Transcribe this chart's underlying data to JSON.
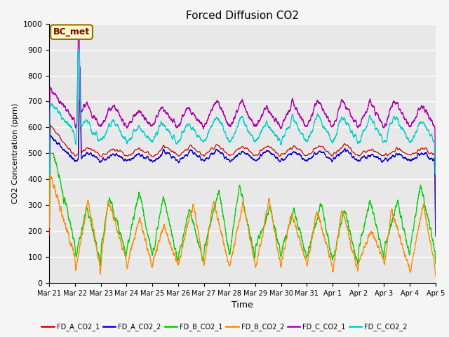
{
  "title": "Forced Diffusion CO2",
  "xlabel": "Time",
  "ylabel": "CO2 Concentration (ppm)",
  "ylim": [
    0,
    1000
  ],
  "legend_colors": [
    "#cc0000",
    "#0000cc",
    "#00cc00",
    "#ff8800",
    "#aa00aa",
    "#00cccc"
  ],
  "legend_labels": [
    "FD_A_CO2_1",
    "FD_A_CO2_2",
    "FD_B_CO2_1",
    "FD_B_CO2_2",
    "FD_C_CO2_1",
    "FD_C_CO2_2"
  ],
  "xtick_labels": [
    "Mar 21",
    "Mar 22",
    "Mar 23",
    "Mar 24",
    "Mar 25",
    "Mar 26",
    "Mar 27",
    "Mar 28",
    "Mar 29",
    "Mar 30",
    "Mar 31",
    "Apr 1",
    "Apr 2",
    "Apr 3",
    "Apr 4",
    "Apr 5"
  ],
  "background_color": "#e8e8e8",
  "grid_color": "#ffffff",
  "annotation_label": "BC_met",
  "annotation_bg": "#ffffcc",
  "annotation_border": "#996600",
  "fig_facecolor": "#f5f5f5"
}
